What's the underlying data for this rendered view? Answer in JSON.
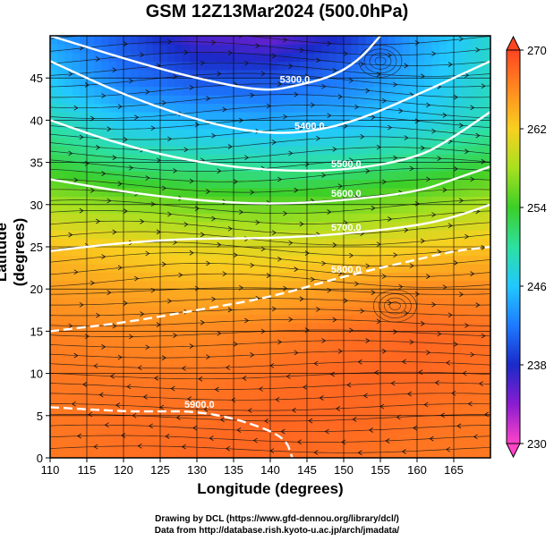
{
  "chart_data": {
    "type": "heatmap",
    "title": "GSM 12Z13Mar2024 (500.0hPa)",
    "xlabel": "Longitude (degrees)",
    "ylabel": "Latitude  (degrees)",
    "xlim": [
      110,
      170
    ],
    "ylim": [
      0,
      50
    ],
    "x_ticks": [
      "110",
      "115",
      "120",
      "125",
      "130",
      "135",
      "140",
      "145",
      "150",
      "155",
      "160",
      "165"
    ],
    "y_ticks": [
      "0",
      "5",
      "10",
      "15",
      "20",
      "25",
      "30",
      "35",
      "40",
      "45"
    ],
    "grid": true,
    "colorbar": {
      "placement": "right",
      "min": 230,
      "max": 270,
      "tick_labels": [
        "270",
        "262",
        "254",
        "246",
        "238",
        "230"
      ],
      "stops": [
        "#ff44c8",
        "#8a1cd0",
        "#1a2ac8",
        "#1e7aff",
        "#22c8ff",
        "#2ee0a0",
        "#3ccf28",
        "#a8e020",
        "#f8d020",
        "#ff8a20",
        "#ff4422"
      ]
    },
    "temperature_field_K": {
      "lon": [
        110,
        120,
        130,
        140,
        150,
        160,
        170
      ],
      "lat": [
        0,
        5,
        10,
        15,
        20,
        25,
        30,
        35,
        40,
        45,
        50
      ],
      "values": [
        [
          267,
          267.5,
          268,
          268,
          267.5,
          267,
          267
        ],
        [
          267,
          267.5,
          267.5,
          268,
          268,
          267.5,
          267
        ],
        [
          267,
          267,
          267,
          267.5,
          268,
          268,
          267.5
        ],
        [
          266.5,
          266,
          266,
          266.5,
          267.5,
          268,
          267.5
        ],
        [
          265,
          264.5,
          264,
          264,
          265,
          266,
          266
        ],
        [
          263,
          262,
          261,
          260.5,
          261,
          262,
          263
        ],
        [
          258,
          257,
          256,
          255.5,
          256,
          257,
          258.5
        ],
        [
          253,
          251,
          250,
          249.5,
          250,
          251.5,
          253
        ],
        [
          249,
          246,
          245,
          244.5,
          245,
          246.5,
          249
        ],
        [
          246,
          242,
          240,
          240,
          242,
          245,
          248.5
        ],
        [
          244,
          240,
          236,
          235,
          238,
          244,
          248
        ]
      ]
    },
    "height_contours_m": [
      {
        "label": "5300.0",
        "lat": [
          50,
          46,
          44,
          43.5,
          44,
          45,
          47,
          50
        ],
        "lon": [
          110,
          125,
          135,
          140,
          143,
          148,
          152,
          155
        ]
      },
      {
        "label": "5400.0",
        "lat": [
          47,
          43,
          40,
          38.5,
          38.5,
          40,
          43,
          47
        ],
        "lon": [
          110,
          120,
          130,
          138,
          145,
          152,
          160,
          170
        ]
      },
      {
        "label": "5500.0",
        "lat": [
          40,
          37,
          35,
          34,
          34,
          35.5,
          38,
          41
        ],
        "lon": [
          110,
          120,
          130,
          140,
          150,
          160,
          165,
          170
        ]
      },
      {
        "label": "5600.0",
        "lat": [
          33,
          31.5,
          30.5,
          30,
          30.5,
          31.5,
          33,
          34.5
        ],
        "lon": [
          110,
          120,
          130,
          140,
          150,
          160,
          165,
          170
        ]
      },
      {
        "label": "5700.0",
        "lat": [
          24.5,
          25.5,
          26,
          26,
          26.5,
          27.5,
          28.5,
          30
        ],
        "lon": [
          110,
          120,
          130,
          140,
          150,
          160,
          165,
          170
        ]
      },
      {
        "label": "5800.0",
        "lat": [
          15,
          16,
          17.5,
          19,
          21.5,
          23.5,
          24.5,
          25
        ],
        "lon": [
          110,
          120,
          130,
          140,
          150,
          160,
          165,
          170
        ]
      },
      {
        "label": "5900.0",
        "lat": [
          6,
          5.5,
          5.5,
          5.5,
          4.5,
          2.5,
          0
        ],
        "lon": [
          110,
          120,
          125,
          130,
          136,
          142,
          143
        ]
      }
    ],
    "wind": "streamlines with arrows; westerlies north of 20N, anticyclone near 157E 18N, cyclone near 155E 47N"
  },
  "credits": {
    "line1": "Drawing by DCL (https://www.gfd-dennou.org/library/dcl/)",
    "line2": "Data from http://database.rish.kyoto-u.ac.jp/arch/jmadata/"
  }
}
